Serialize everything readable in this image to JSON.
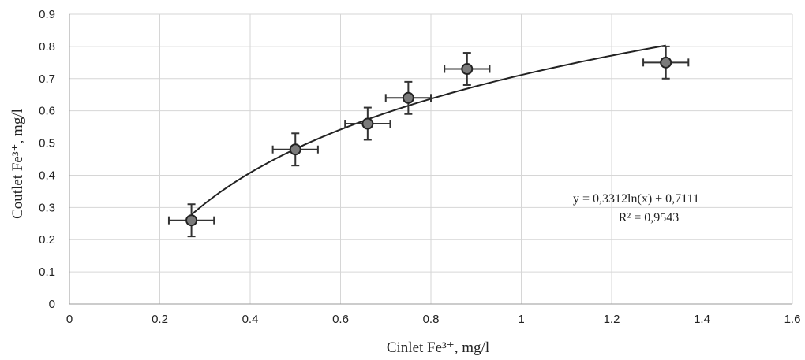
{
  "chart_data": {
    "type": "scatter",
    "title": "",
    "xlabel": "Cinlet Fe³⁺, mg/l",
    "ylabel": "Coutlet Fe³⁺, mg/l",
    "xlim": [
      0,
      1.6
    ],
    "ylim": [
      0,
      0.9
    ],
    "x_ticks": [
      "0",
      "0.2",
      "0.4",
      "0.6",
      "0.8",
      "1",
      "1.2",
      "1.4",
      "1.6"
    ],
    "y_ticks": [
      "0",
      "0.1",
      "0.2",
      "0.3",
      "0.4",
      "0.5",
      "0.6",
      "0.7",
      "0.8",
      "0.9"
    ],
    "y_tick_labels": [
      "0",
      "0.1",
      "0.2",
      "0.3",
      "0,4",
      "0.5",
      "0.6",
      "0.7",
      "0.8",
      "0.9"
    ],
    "grid": true,
    "points": [
      {
        "x": 0.27,
        "y": 0.26,
        "x_err": 0.05,
        "y_err": 0.05
      },
      {
        "x": 0.5,
        "y": 0.48,
        "x_err": 0.05,
        "y_err": 0.05
      },
      {
        "x": 0.66,
        "y": 0.56,
        "x_err": 0.05,
        "y_err": 0.05
      },
      {
        "x": 0.75,
        "y": 0.64,
        "x_err": 0.05,
        "y_err": 0.05
      },
      {
        "x": 0.88,
        "y": 0.73,
        "x_err": 0.05,
        "y_err": 0.05
      },
      {
        "x": 1.32,
        "y": 0.75,
        "x_err": 0.05,
        "y_err": 0.05
      }
    ],
    "trendline": {
      "type": "logarithmic",
      "a": 0.3312,
      "b": 0.7111,
      "x_range": [
        0.27,
        1.32
      ]
    },
    "annotation": {
      "equation": "y = 0,3312ln(x) + 0,7111",
      "r_squared": "R² = 0,9543"
    },
    "colors": {
      "marker_fill": "#7a7a7a",
      "marker_edge": "#222222",
      "grid": "#d6d6d6"
    }
  }
}
